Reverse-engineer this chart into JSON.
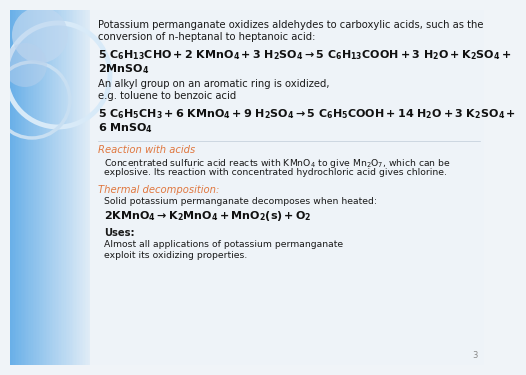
{
  "orange_color": "#e07840",
  "dark_text": "#1a1a1a",
  "slide_number": "3",
  "bg_blue_left": "#6ab0e8",
  "bg_blue_mid": "#a8cef0",
  "bg_white": "#f0f4f8",
  "circle1_color": "#c8dff0",
  "circle2_color": "#b8d4ec",
  "intro_line1": "Potassium permanganate oxidizes aldehydes to carboxylic acids, such as the",
  "intro_line2": "conversion of n-heptanal to heptanoic acid:",
  "eq1_line1": "$\\mathbf{5\\ C_6H_{13}CHO + 2\\ KMnO_4 + 3\\ H_2SO_4 \\rightarrow 5\\ C_6H_{13}COOH + 3\\ H_2O + K_2SO_4 +}$",
  "eq1_line2": "$\\mathbf{2MnSO_4}$",
  "alkyl_line1": "An alkyl group on an aromatic ring is oxidized,",
  "alkyl_line2": "e.g. toluene to benzoic acid",
  "eq2_line1": "$\\mathbf{5\\ C_6H_5CH_3 + 6\\ KMnO_4 + 9\\ H_2SO_4 \\rightarrow 5\\ C_6H_5COOH + 14\\ H_2O + 3\\ K_2SO_4 +}$",
  "eq2_line2": "$\\mathbf{6\\ MnSO_4}$",
  "reaction_title": "Reaction with acids",
  "reaction_line1": "Concentrated sulfuric acid reacts with $\\mathrm{KMnO_4}$ to give $\\mathrm{Mn_2O_7}$, which can be",
  "reaction_line2": "explosive. Its reaction with concentrated hydrochloric acid gives chlorine.",
  "thermal_title": "Thermal decomposition:",
  "thermal_line1": "Solid potassium permanganate decomposes when heated:",
  "thermal_eq": "$\\mathbf{2KMnO_4 \\rightarrow K_2MnO_4 + MnO_2(s) + O_2}$",
  "uses_title": "Uses:",
  "uses_line1": "Almost all applications of potassium permanganate",
  "uses_line2": "exploit its oxidizing properties."
}
